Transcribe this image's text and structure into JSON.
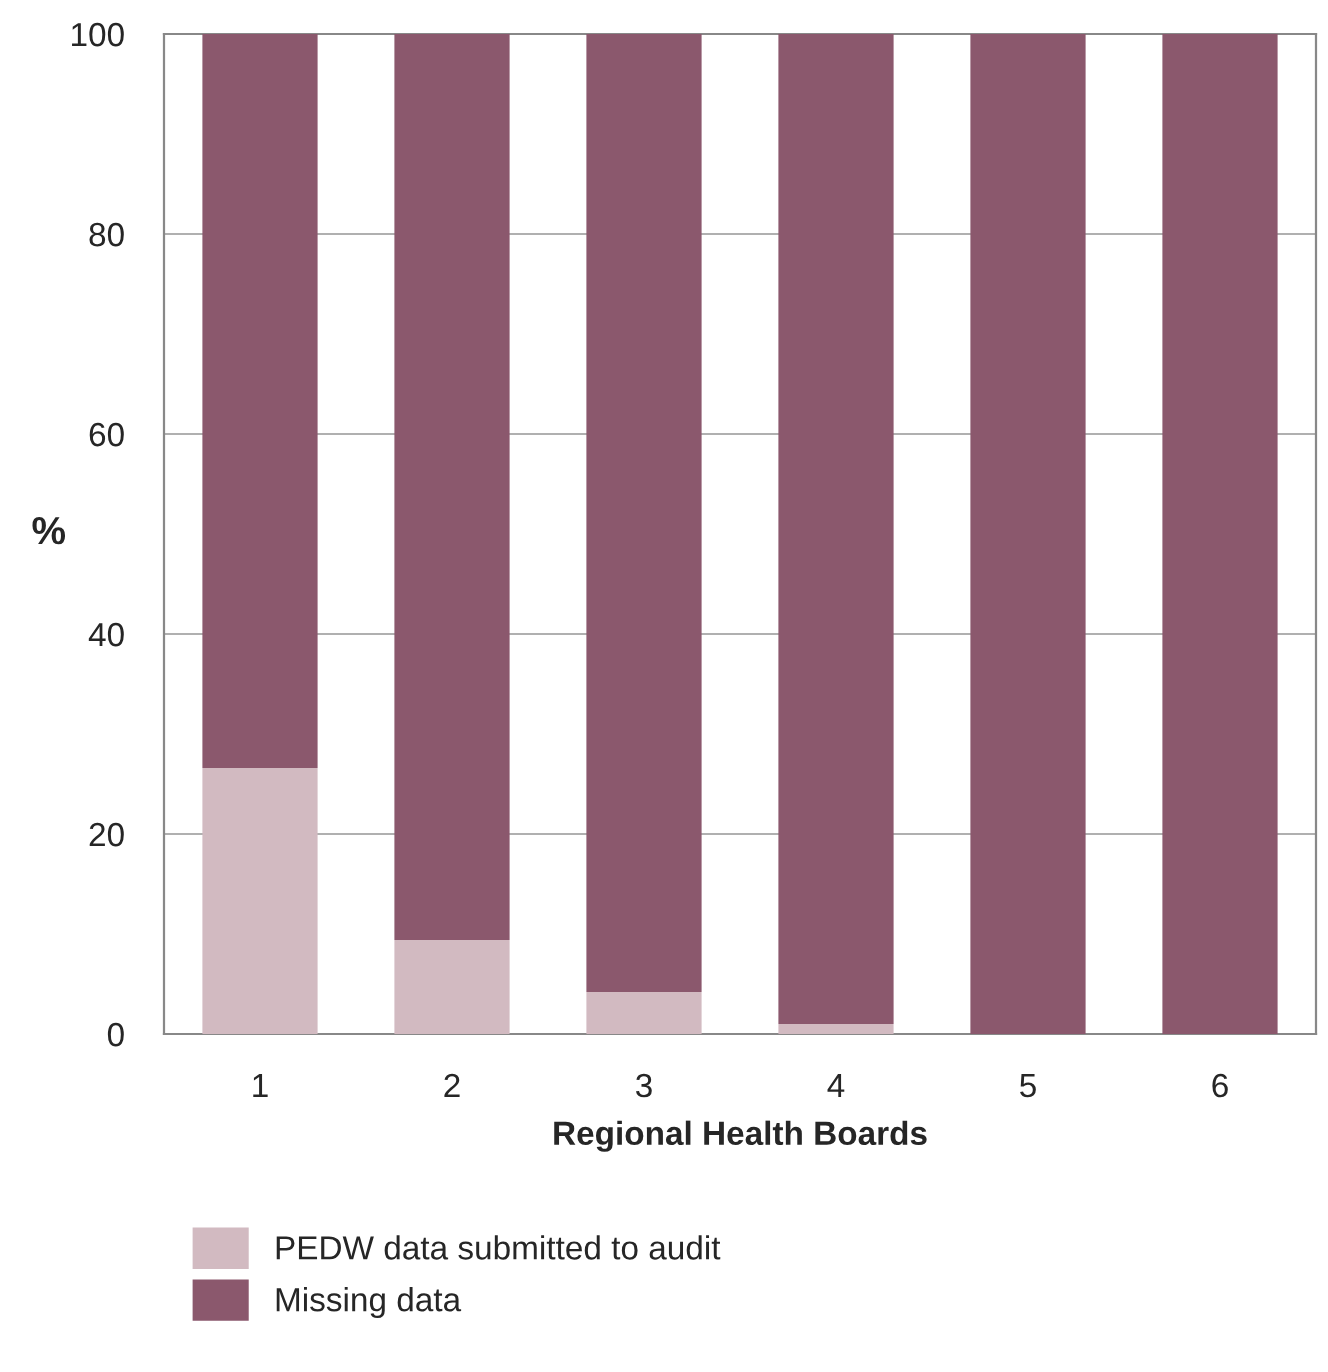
{
  "chart_data": {
    "type": "bar",
    "stacked": true,
    "xlabel": "Regional Health Boards",
    "ylabel": "%",
    "categories": [
      "1",
      "2",
      "3",
      "4",
      "5",
      "6"
    ],
    "series": [
      {
        "name": "PEDW data submitted to audit",
        "color": "#d2bac1",
        "values": [
          26.6,
          9.4,
          4.2,
          1,
          0,
          0
        ]
      },
      {
        "name": "Missing data",
        "color": "#8b586d",
        "values": [
          73.4,
          90.6,
          95.8,
          99,
          100,
          100
        ]
      }
    ],
    "ylim": [
      0,
      100
    ],
    "yticks": [
      0,
      20,
      40,
      60,
      80,
      100
    ],
    "grid": "y",
    "legend": "bottom"
  }
}
